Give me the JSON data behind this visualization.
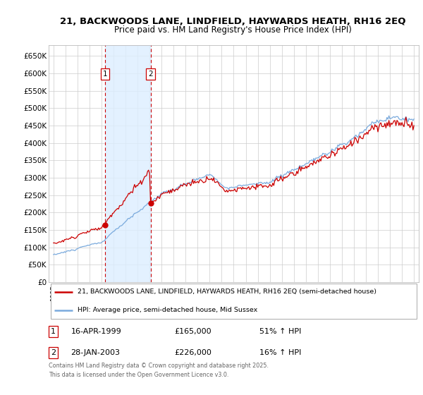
{
  "title": "21, BACKWOODS LANE, LINDFIELD, HAYWARDS HEATH, RH16 2EQ",
  "subtitle": "Price paid vs. HM Land Registry's House Price Index (HPI)",
  "ylim": [
    0,
    680000
  ],
  "yticks": [
    0,
    50000,
    100000,
    150000,
    200000,
    250000,
    300000,
    350000,
    400000,
    450000,
    500000,
    550000,
    600000,
    650000
  ],
  "ytick_labels": [
    "£0",
    "£50K",
    "£100K",
    "£150K",
    "£200K",
    "£250K",
    "£300K",
    "£350K",
    "£400K",
    "£450K",
    "£500K",
    "£550K",
    "£600K",
    "£650K"
  ],
  "xlim_start": 1994.6,
  "xlim_end": 2025.4,
  "transaction1_date": 1999.29,
  "transaction2_date": 2003.08,
  "transaction1_price": 165000,
  "transaction2_price": 226000,
  "vline_color": "#cc0000",
  "red_line_color": "#cc0000",
  "blue_line_color": "#7aaadd",
  "span_color": "#ddeeff",
  "bg_color": "#ffffff",
  "grid_color": "#cccccc",
  "legend_label_red": "21, BACKWOODS LANE, LINDFIELD, HAYWARDS HEATH, RH16 2EQ (semi-detached house)",
  "legend_label_blue": "HPI: Average price, semi-detached house, Mid Sussex",
  "annotation1_date": "16-APR-1999",
  "annotation1_price": "£165,000",
  "annotation1_hpi": "51% ↑ HPI",
  "annotation2_date": "28-JAN-2003",
  "annotation2_price": "£226,000",
  "annotation2_hpi": "16% ↑ HPI",
  "footer": "Contains HM Land Registry data © Crown copyright and database right 2025.\nThis data is licensed under the Open Government Licence v3.0."
}
